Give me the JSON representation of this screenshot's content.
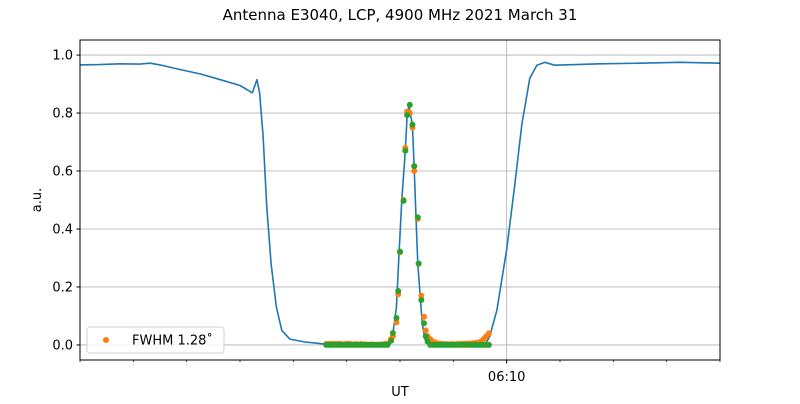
{
  "chart_data": {
    "type": "line",
    "title": "Antenna E3040, LCP, 4900 MHz 2021 March 31",
    "xlabel": "UT",
    "ylabel": "a.u.",
    "xlim": [
      "06:02:00",
      "06:14:00"
    ],
    "ylim": [
      -0.052,
      1.052
    ],
    "x_major_ticks": [
      {
        "time": "06:10:00",
        "label": "06:10"
      }
    ],
    "x_minor_tick_interval_minutes": 1,
    "y_ticks": [
      0.0,
      0.2,
      0.4,
      0.6,
      0.8,
      1.0
    ],
    "y_tick_labels": [
      "0.0",
      "0.2",
      "0.4",
      "0.6",
      "0.8",
      "1.0"
    ],
    "grid": true,
    "legend": {
      "placement": "lower-left",
      "entries": [
        {
          "label": "FWHM 1.28˚",
          "series": "orange"
        }
      ]
    },
    "colors": {
      "line": "#1f77b4",
      "orange": "#ff7f0e",
      "green": "#2ca02c",
      "grid": "#b0b0b0"
    },
    "line": {
      "x": [
        "06:02:00",
        "06:02:22",
        "06:02:45",
        "06:03:07",
        "06:03:19",
        "06:03:30",
        "06:03:53",
        "06:04:15",
        "06:04:38",
        "06:05:00",
        "06:05:14",
        "06:05:19",
        "06:05:22",
        "06:05:26",
        "06:05:30",
        "06:05:35",
        "06:05:41",
        "06:05:47",
        "06:05:56",
        "06:06:13",
        "06:06:36",
        "06:07:49",
        "06:07:52",
        "06:07:56",
        "06:07:59",
        "06:08:02",
        "06:08:06",
        "06:08:08",
        "06:08:10",
        "06:08:14",
        "06:08:16",
        "06:08:18",
        "06:08:20",
        "06:08:23",
        "06:08:25",
        "06:08:28",
        "06:08:34",
        "06:09:36",
        "06:09:41",
        "06:09:49",
        "06:10:00",
        "06:10:09",
        "06:10:17",
        "06:10:26",
        "06:10:34",
        "06:10:43",
        "06:10:54",
        "06:11:45",
        "06:12:30",
        "06:13:15",
        "06:14:00"
      ],
      "y": [
        0.966,
        0.967,
        0.97,
        0.969,
        0.972,
        0.966,
        0.95,
        0.935,
        0.915,
        0.895,
        0.87,
        0.915,
        0.87,
        0.72,
        0.48,
        0.28,
        0.13,
        0.05,
        0.02,
        0.01,
        0.003,
        0.003,
        0.04,
        0.13,
        0.32,
        0.5,
        0.67,
        0.79,
        0.825,
        0.76,
        0.61,
        0.44,
        0.28,
        0.16,
        0.075,
        0.02,
        0.005,
        0.003,
        0.03,
        0.12,
        0.33,
        0.55,
        0.76,
        0.92,
        0.965,
        0.975,
        0.965,
        0.97,
        0.972,
        0.975,
        0.972
      ]
    },
    "scatter_x": [
      "06:06:37",
      "06:06:40",
      "06:06:43",
      "06:06:46",
      "06:06:49",
      "06:06:52",
      "06:06:55",
      "06:06:58",
      "06:07:01",
      "06:07:04",
      "06:07:07",
      "06:07:10",
      "06:07:13",
      "06:07:16",
      "06:07:19",
      "06:07:22",
      "06:07:25",
      "06:07:28",
      "06:07:31",
      "06:07:34",
      "06:07:37",
      "06:07:40",
      "06:07:43",
      "06:07:46",
      "06:07:50",
      "06:07:52",
      "06:07:56",
      "06:07:58",
      "06:08:00",
      "06:08:04",
      "06:08:06",
      "06:08:08",
      "06:08:11",
      "06:08:14",
      "06:08:16",
      "06:08:20",
      "06:08:21",
      "06:08:24",
      "06:08:27",
      "06:08:29",
      "06:08:31",
      "06:08:34",
      "06:08:37",
      "06:08:40",
      "06:08:43",
      "06:08:46",
      "06:08:49",
      "06:08:52",
      "06:08:55",
      "06:08:58",
      "06:09:01",
      "06:09:04",
      "06:09:07",
      "06:09:10",
      "06:09:13",
      "06:09:16",
      "06:09:19",
      "06:09:22",
      "06:09:25",
      "06:09:28",
      "06:09:31",
      "06:09:34",
      "06:09:37",
      "06:09:40"
    ],
    "orange_y": [
      0.003,
      0.004,
      0.003,
      0.004,
      0.003,
      0.004,
      0.002,
      0.003,
      0.004,
      0.003,
      0.002,
      0.003,
      0.002,
      0.003,
      0.002,
      0.002,
      0.001,
      0.002,
      0.001,
      0.001,
      0.001,
      0.002,
      0.003,
      0.005,
      0.02,
      0.03,
      0.078,
      0.175,
      0.32,
      0.5,
      0.68,
      0.805,
      0.8,
      0.75,
      0.6,
      0.435,
      0.28,
      0.17,
      0.097,
      0.05,
      0.03,
      0.02,
      0.012,
      0.008,
      0.005,
      0.004,
      0.003,
      0.003,
      0.002,
      0.003,
      0.002,
      0.003,
      0.003,
      0.004,
      0.004,
      0.005,
      0.005,
      0.006,
      0.007,
      0.008,
      0.012,
      0.02,
      0.03,
      0.04
    ],
    "green_y": [
      0,
      0,
      0,
      0,
      0,
      0,
      0,
      0,
      0,
      0,
      0,
      0,
      0,
      0,
      0,
      0,
      0,
      0,
      0,
      0,
      0,
      0,
      0,
      0,
      0.015,
      0.041,
      0.093,
      0.186,
      0.322,
      0.497,
      0.67,
      0.793,
      0.828,
      0.76,
      0.617,
      0.44,
      0.281,
      0.155,
      0.075,
      0.03,
      0.012,
      0,
      0,
      0,
      0,
      0,
      0,
      0,
      0,
      0,
      0,
      0,
      0,
      0,
      0,
      0,
      0,
      0,
      0,
      0,
      0,
      0,
      0,
      0
    ]
  }
}
